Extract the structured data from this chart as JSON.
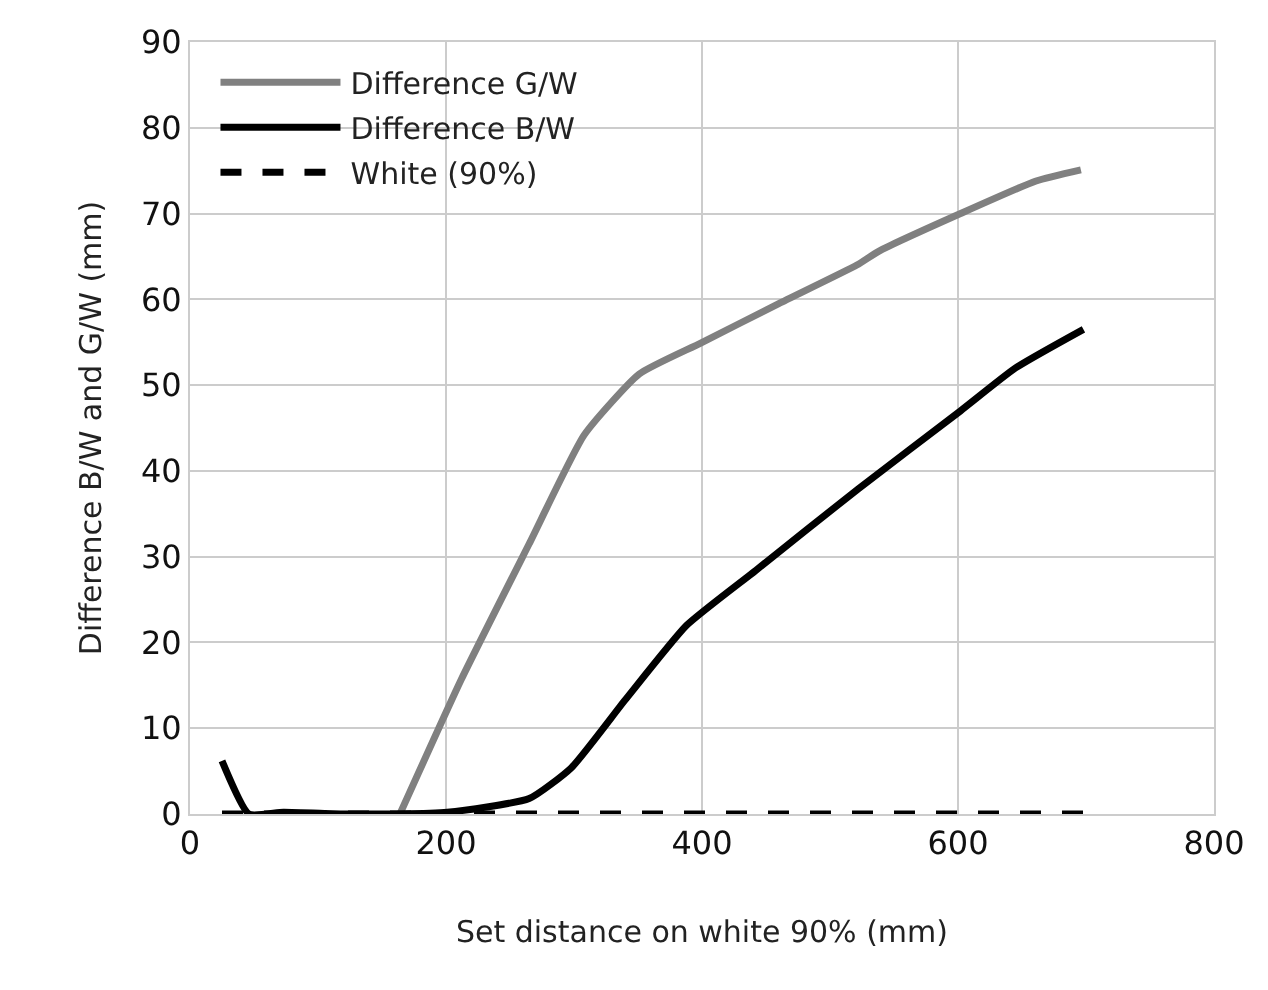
{
  "chart_data": {
    "type": "line",
    "xlabel": "Set distance on white 90% (mm)",
    "ylabel": "Difference B/W and G/W (mm)",
    "xlim": [
      0,
      800
    ],
    "xticks": [
      0,
      200,
      400,
      600,
      800
    ],
    "ylim": [
      0,
      90
    ],
    "yticks": [
      0,
      10,
      20,
      30,
      40,
      50,
      60,
      70,
      80,
      90
    ],
    "grid": true,
    "legend": "top left",
    "marker": "none",
    "series": [
      {
        "name": "Difference G/W",
        "color": "#808080",
        "line_style": "solid",
        "x": [
          164,
          212,
          265,
          308,
          351,
          399,
          460,
          521,
          538,
          602,
          661,
          696
        ],
        "values": [
          0,
          15.7,
          31.5,
          44.2,
          51.3,
          54.9,
          59.5,
          64,
          65.6,
          70,
          73.8,
          75.1
        ]
      },
      {
        "name": "Difference B/W",
        "color": "#000000",
        "line_style": "solid",
        "x": [
          25,
          46,
          73,
          120,
          164,
          201,
          265,
          298,
          340,
          388,
          442,
          522,
          602,
          645,
          698
        ],
        "values": [
          6.2,
          0,
          0.2,
          0,
          0,
          0.2,
          1.8,
          5.4,
          13.3,
          22,
          28.4,
          37.9,
          47,
          52,
          56.5
        ]
      },
      {
        "name": "White (90%)",
        "color": "#000000",
        "line_style": "dashed",
        "x": [
          25,
          700
        ],
        "values": [
          0,
          0
        ]
      }
    ]
  }
}
